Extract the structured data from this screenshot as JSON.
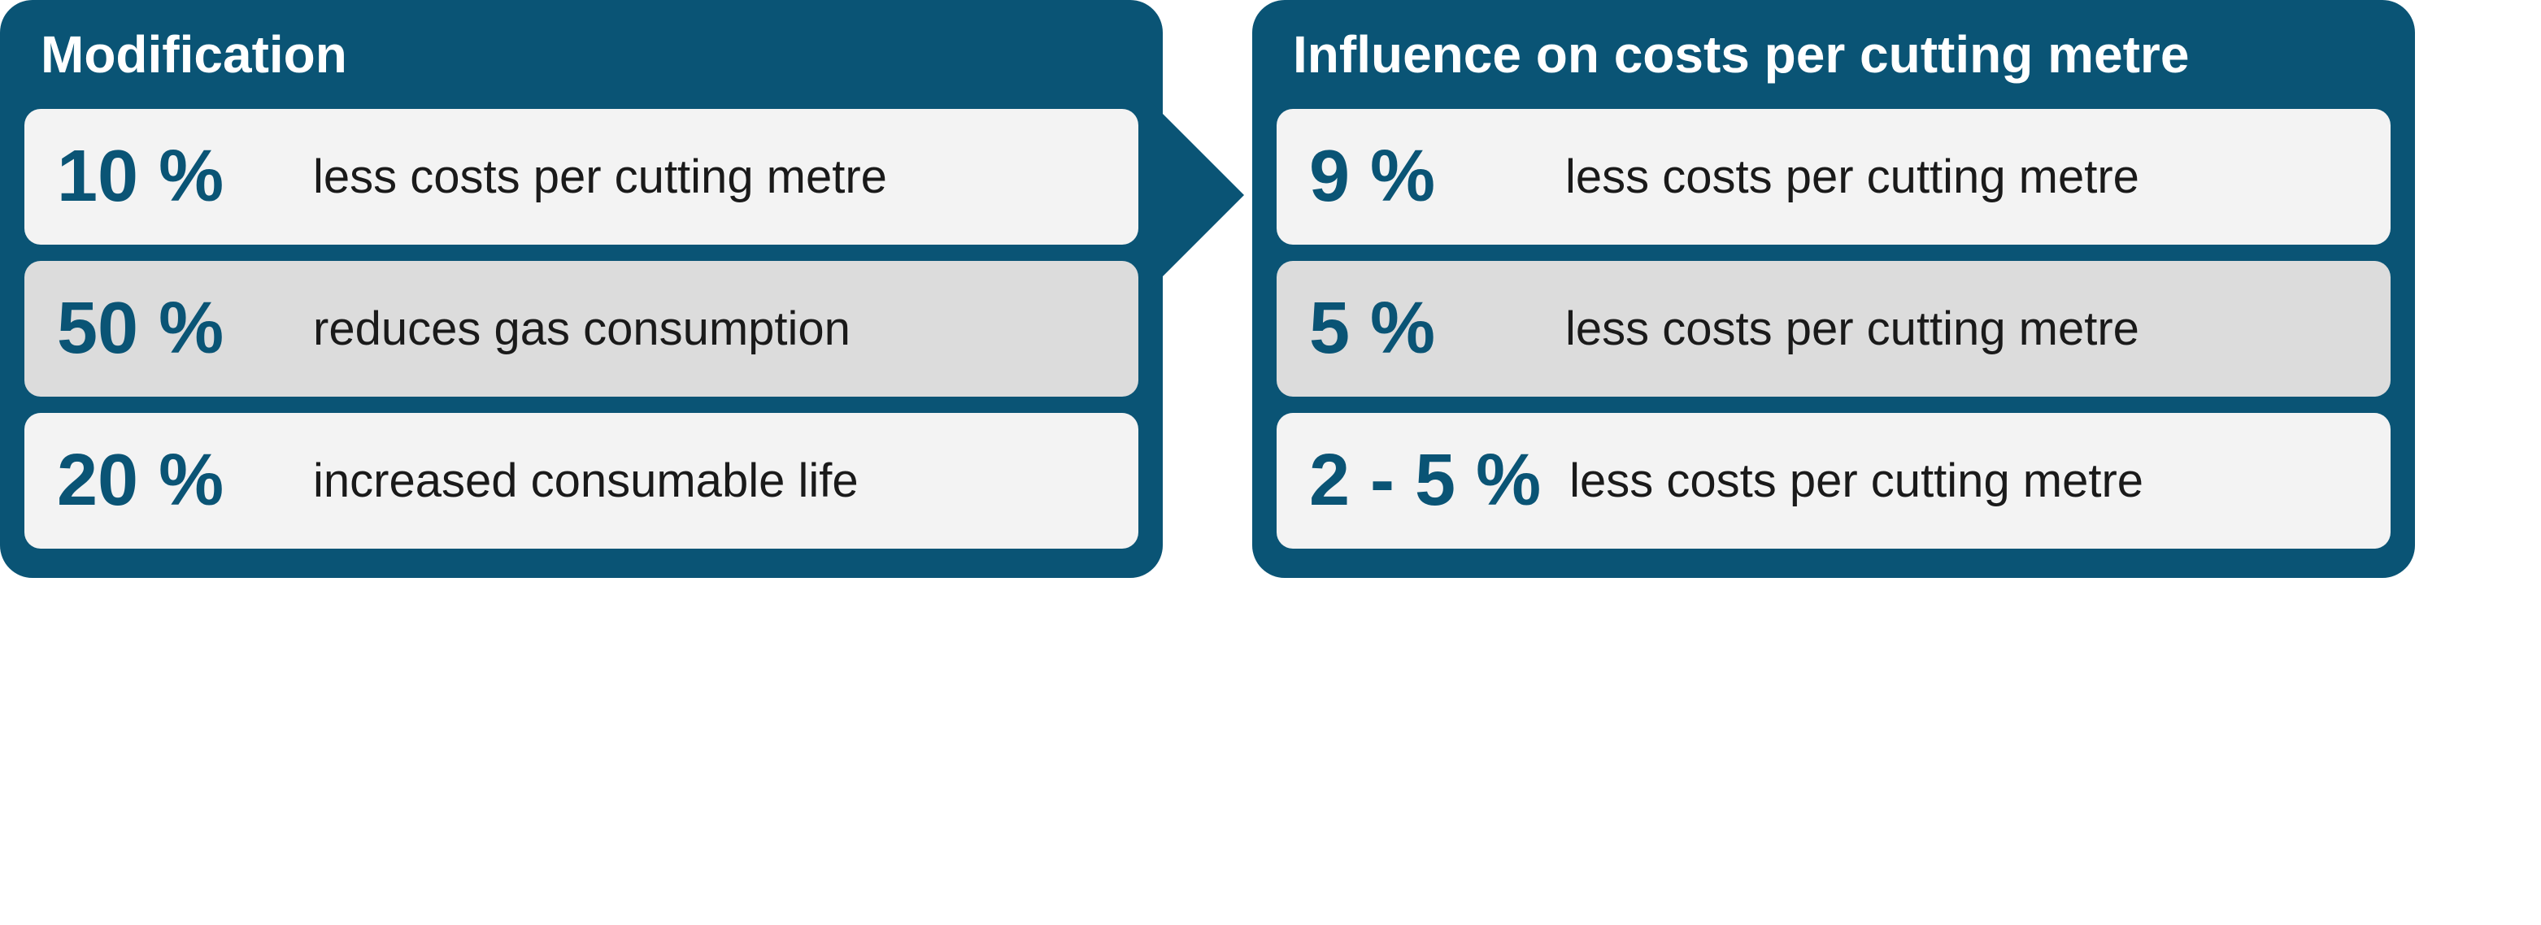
{
  "colors": {
    "panel_bg": "#0a5475",
    "row_light": "#f3f3f3",
    "row_gray": "#dcdcdc",
    "value_color": "#0a5475",
    "label_color": "#1a1a1a",
    "title_color": "#ffffff",
    "page_bg": "#ffffff"
  },
  "typography": {
    "title_fontsize": 64,
    "value_fontsize": 90,
    "label_fontsize": 58,
    "font_family": "Arial"
  },
  "layout": {
    "panel_radius": 40,
    "row_radius": 20,
    "panel_gap": 110,
    "row_gap": 20
  },
  "left_panel": {
    "title": "Modification",
    "rows": [
      {
        "value": "10 %",
        "label": "less costs per cutting metre",
        "bg": "light"
      },
      {
        "value": "50 %",
        "label": "reduces gas consumption",
        "bg": "gray"
      },
      {
        "value": "20 %",
        "label": "increased consumable life",
        "bg": "light"
      }
    ]
  },
  "right_panel": {
    "title": "Influence on costs per cutting metre",
    "rows": [
      {
        "value": "9 %",
        "label": "less costs per cutting metre",
        "bg": "light"
      },
      {
        "value": "5 %",
        "label": "less costs per cutting metre",
        "bg": "gray"
      },
      {
        "value": "2 - 5 %",
        "label": "less costs per cutting metre",
        "bg": "light"
      }
    ]
  }
}
